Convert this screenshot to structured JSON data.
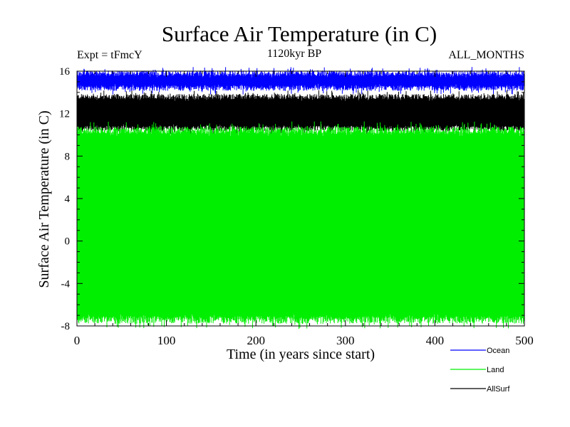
{
  "chart_data": {
    "type": "line",
    "title": "Surface Air Temperature (in C)",
    "subtitle_left": "Expt = tFmcY",
    "subtitle_center": "1120kyr BP",
    "subtitle_right": "ALL_MONTHS",
    "xlabel": "Time (in years since start)",
    "ylabel": "Surface Air Temperature (in C)",
    "xlim": [
      0,
      500
    ],
    "ylim": [
      -8,
      16
    ],
    "xticks": [
      "0",
      "100",
      "200",
      "300",
      "400",
      "500"
    ],
    "yticks": [
      "16",
      "12",
      "8",
      "4",
      "0",
      "-4",
      "-8"
    ],
    "legend_position": "bottom-right",
    "series": [
      {
        "name": "Ocean",
        "color": "#0000ff",
        "seasonal_min": 14.5,
        "seasonal_max": 15.7,
        "noise": 0.25
      },
      {
        "name": "Land",
        "color": "#00ee00",
        "seasonal_min": -7.3,
        "seasonal_max": 10.3,
        "noise": 0.35
      },
      {
        "name": "AllSurf",
        "color": "#000000",
        "seasonal_min": 10.7,
        "seasonal_max": 13.5,
        "noise": 0.25
      }
    ]
  }
}
